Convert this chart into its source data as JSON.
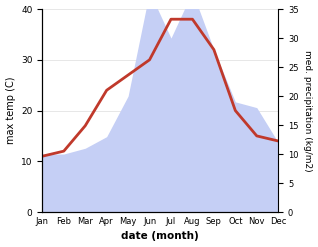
{
  "months": [
    "Jan",
    "Feb",
    "Mar",
    "Apr",
    "May",
    "Jun",
    "Jul",
    "Aug",
    "Sep",
    "Oct",
    "Nov",
    "Dec"
  ],
  "max_temp": [
    11,
    12,
    17,
    24,
    27,
    30,
    38,
    38,
    32,
    20,
    15,
    14
  ],
  "precipitation": [
    10,
    10,
    11,
    13,
    20,
    38,
    30,
    38,
    28,
    19,
    18,
    12
  ],
  "temp_color": "#c0392b",
  "precip_color": "#c5cff5",
  "left_ylabel": "max temp (C)",
  "right_ylabel": "med. precipitation (kg/m2)",
  "xlabel": "date (month)",
  "left_ylim": [
    0,
    40
  ],
  "right_ylim": [
    0,
    35
  ],
  "left_yticks": [
    0,
    10,
    20,
    30,
    40
  ],
  "right_yticks": [
    0,
    5,
    10,
    15,
    20,
    25,
    30,
    35
  ]
}
